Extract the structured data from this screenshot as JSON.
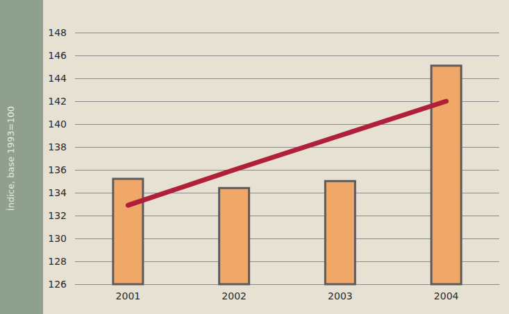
{
  "chart_data": {
    "type": "bar",
    "y_label": "Índice, base 1993=100",
    "categories": [
      "2001",
      "2002",
      "2003",
      "2004"
    ],
    "series": [
      {
        "type": "bar",
        "color": "#f0a868",
        "values": [
          135.3,
          134.5,
          135.1,
          145.2
        ]
      },
      {
        "type": "line",
        "color": "#b0203a",
        "values": [
          132.9,
          136.0,
          139.0,
          142.0
        ]
      }
    ],
    "ylim": [
      126,
      148
    ],
    "yticks": [
      126,
      128,
      130,
      132,
      134,
      136,
      138,
      140,
      142,
      144,
      146,
      148
    ],
    "grid": true
  }
}
